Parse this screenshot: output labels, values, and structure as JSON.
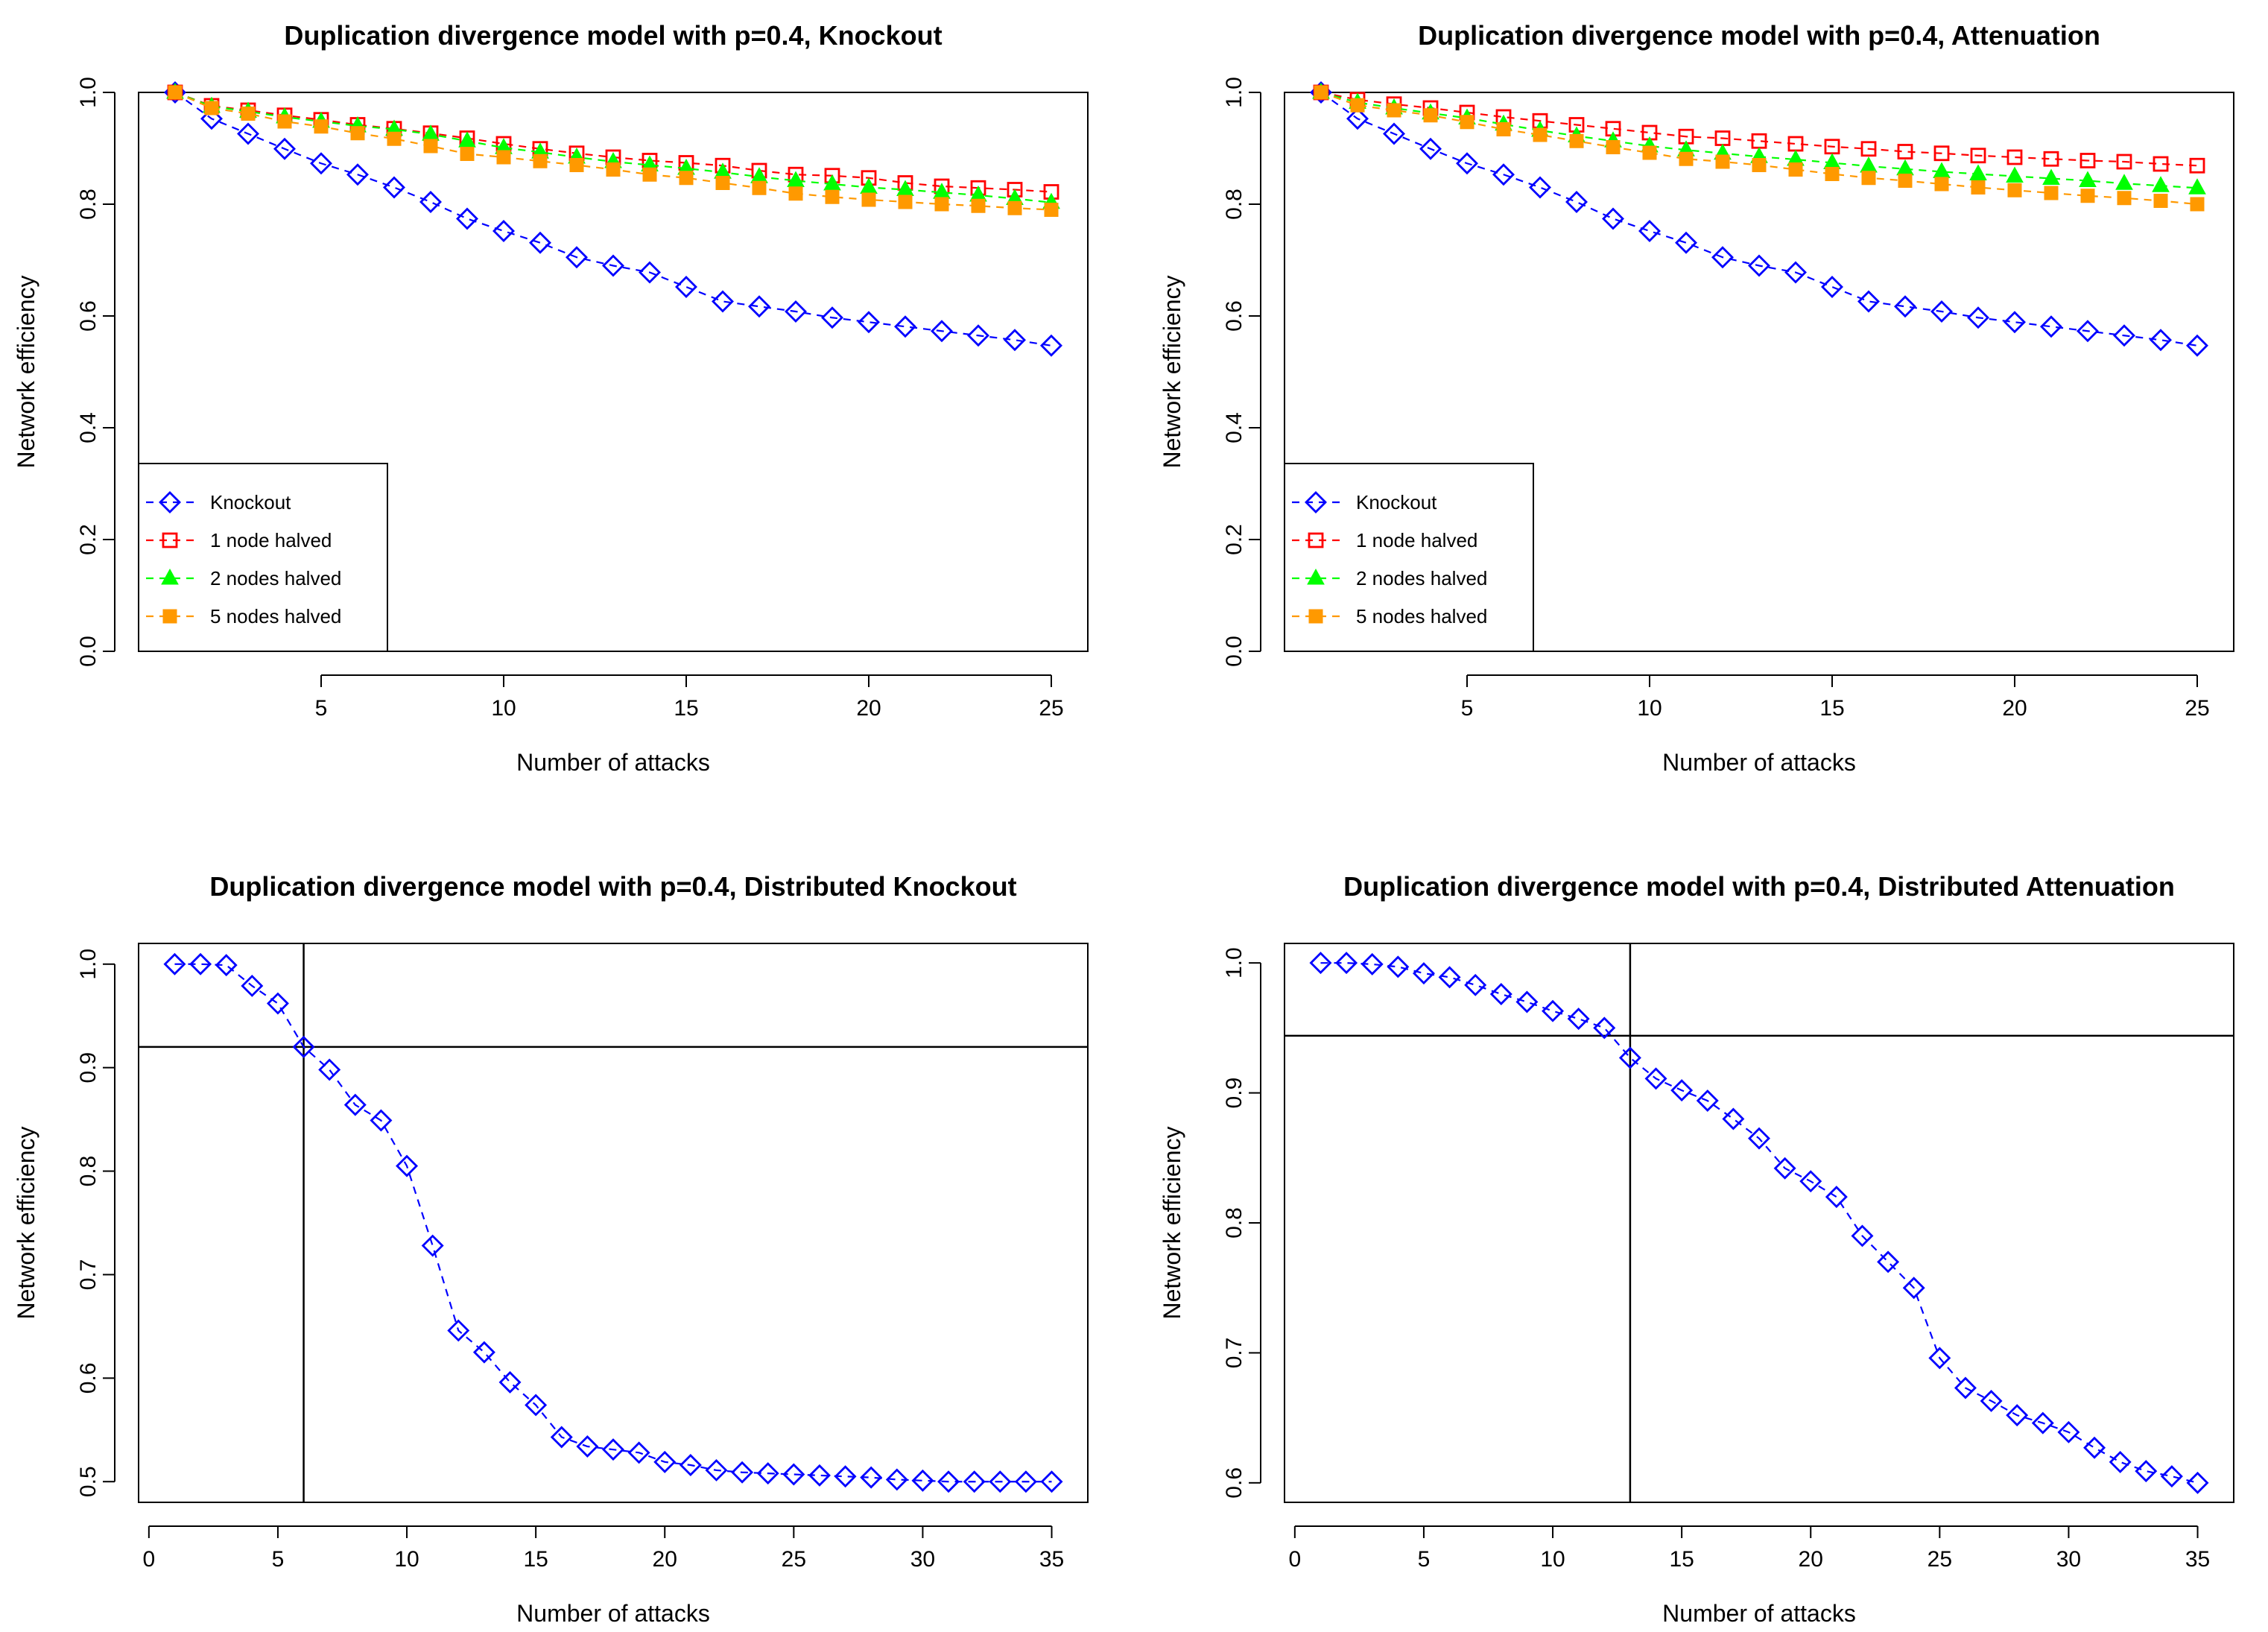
{
  "chart_data": [
    {
      "type": "line",
      "title": "Duplication divergence model with p=0.4, Knockout",
      "xlabel": "Number of attacks",
      "ylabel": "Network efficiency",
      "xlim": [
        0,
        26
      ],
      "ylim": [
        0,
        1
      ],
      "xticks": [
        5,
        10,
        15,
        20,
        25
      ],
      "yticks": [
        0.0,
        0.2,
        0.4,
        0.6,
        0.8,
        1.0
      ],
      "ytick_labels": [
        "0.0",
        "0.2",
        "0.4",
        "0.6",
        "0.8",
        "1.0"
      ],
      "x": [
        1,
        2,
        3,
        4,
        5,
        6,
        7,
        8,
        9,
        10,
        11,
        12,
        13,
        14,
        15,
        16,
        17,
        18,
        19,
        20,
        21,
        22,
        23,
        24,
        25
      ],
      "legend": "bottom-left",
      "series": [
        {
          "name": "Knockout",
          "color": "#0000ff",
          "marker": "diamond-open",
          "values": [
            1.0,
            0.953,
            0.926,
            0.899,
            0.873,
            0.853,
            0.83,
            0.804,
            0.774,
            0.752,
            0.731,
            0.705,
            0.69,
            0.678,
            0.652,
            0.626,
            0.617,
            0.608,
            0.597,
            0.589,
            0.581,
            0.573,
            0.565,
            0.557,
            0.547
          ]
        },
        {
          "name": "1 node halved",
          "color": "#ff0000",
          "marker": "square-open",
          "values": [
            1.0,
            0.976,
            0.968,
            0.959,
            0.951,
            0.942,
            0.935,
            0.927,
            0.918,
            0.908,
            0.899,
            0.891,
            0.884,
            0.878,
            0.874,
            0.869,
            0.86,
            0.853,
            0.851,
            0.847,
            0.838,
            0.832,
            0.829,
            0.826,
            0.822
          ]
        },
        {
          "name": "2 nodes halved",
          "color": "#00ff00",
          "marker": "triangle",
          "values": [
            1.0,
            0.975,
            0.966,
            0.956,
            0.948,
            0.94,
            0.934,
            0.925,
            0.913,
            0.901,
            0.893,
            0.884,
            0.876,
            0.87,
            0.864,
            0.857,
            0.849,
            0.842,
            0.836,
            0.83,
            0.826,
            0.821,
            0.816,
            0.81,
            0.803
          ]
        },
        {
          "name": "5 nodes halved",
          "color": "#ff9900",
          "marker": "square",
          "values": [
            1.0,
            0.972,
            0.962,
            0.948,
            0.939,
            0.927,
            0.917,
            0.904,
            0.89,
            0.884,
            0.877,
            0.87,
            0.862,
            0.853,
            0.847,
            0.838,
            0.829,
            0.819,
            0.813,
            0.808,
            0.804,
            0.8,
            0.797,
            0.793,
            0.79
          ]
        }
      ]
    },
    {
      "type": "line",
      "title": "Duplication divergence model with p=0.4, Attenuation",
      "xlabel": "Number of attacks",
      "ylabel": "Network efficiency",
      "xlim": [
        0,
        26
      ],
      "ylim": [
        0,
        1
      ],
      "xticks": [
        5,
        10,
        15,
        20,
        25
      ],
      "yticks": [
        0.0,
        0.2,
        0.4,
        0.6,
        0.8,
        1.0
      ],
      "ytick_labels": [
        "0.0",
        "0.2",
        "0.4",
        "0.6",
        "0.8",
        "1.0"
      ],
      "x": [
        1,
        2,
        3,
        4,
        5,
        6,
        7,
        8,
        9,
        10,
        11,
        12,
        13,
        14,
        15,
        16,
        17,
        18,
        19,
        20,
        21,
        22,
        23,
        24,
        25
      ],
      "legend": "bottom-left",
      "series": [
        {
          "name": "Knockout",
          "color": "#0000ff",
          "marker": "diamond-open",
          "values": [
            1.0,
            0.953,
            0.926,
            0.899,
            0.873,
            0.853,
            0.83,
            0.804,
            0.774,
            0.752,
            0.731,
            0.705,
            0.69,
            0.678,
            0.652,
            0.626,
            0.617,
            0.608,
            0.597,
            0.589,
            0.581,
            0.573,
            0.565,
            0.557,
            0.547
          ]
        },
        {
          "name": "1 node halved",
          "color": "#ff0000",
          "marker": "square-open",
          "values": [
            1.0,
            0.987,
            0.979,
            0.972,
            0.964,
            0.956,
            0.949,
            0.942,
            0.935,
            0.928,
            0.921,
            0.918,
            0.913,
            0.908,
            0.903,
            0.899,
            0.894,
            0.891,
            0.887,
            0.884,
            0.881,
            0.878,
            0.876,
            0.872,
            0.869
          ]
        },
        {
          "name": "2 nodes halved",
          "color": "#00ff00",
          "marker": "triangle",
          "values": [
            1.0,
            0.982,
            0.972,
            0.963,
            0.954,
            0.943,
            0.932,
            0.922,
            0.913,
            0.904,
            0.897,
            0.891,
            0.885,
            0.88,
            0.874,
            0.868,
            0.863,
            0.858,
            0.854,
            0.85,
            0.846,
            0.842,
            0.837,
            0.833,
            0.829
          ]
        },
        {
          "name": "5 nodes halved",
          "color": "#ff9900",
          "marker": "square",
          "values": [
            1.0,
            0.977,
            0.968,
            0.959,
            0.947,
            0.934,
            0.924,
            0.913,
            0.902,
            0.892,
            0.881,
            0.876,
            0.87,
            0.862,
            0.854,
            0.847,
            0.842,
            0.836,
            0.83,
            0.825,
            0.82,
            0.815,
            0.811,
            0.806,
            0.8
          ]
        }
      ]
    },
    {
      "type": "line",
      "title": "Duplication divergence model with p=0.4, Distributed Knockout",
      "xlabel": "Number of attacks",
      "ylabel": "Network efficiency",
      "xlim": [
        -0.4,
        36.4
      ],
      "ylim": [
        0.48,
        1.02
      ],
      "xticks": [
        0,
        5,
        10,
        15,
        20,
        25,
        30,
        35
      ],
      "yticks": [
        0.5,
        0.6,
        0.7,
        0.8,
        0.9,
        1.0
      ],
      "ytick_labels": [
        "0.5",
        "0.6",
        "0.7",
        "0.8",
        "0.9",
        "1.0"
      ],
      "x": [
        1,
        2,
        3,
        4,
        5,
        6,
        7,
        8,
        9,
        10,
        11,
        12,
        13,
        14,
        15,
        16,
        17,
        18,
        19,
        20,
        21,
        22,
        23,
        24,
        25,
        26,
        27,
        28,
        29,
        30,
        31,
        32,
        33,
        34,
        35
      ],
      "ref_lines": {
        "vline": 6,
        "hline": 0.92
      },
      "series": [
        {
          "color": "#0000ff",
          "marker": "diamond-open",
          "values": [
            1.0,
            1.0,
            0.999,
            0.979,
            0.962,
            0.92,
            0.898,
            0.864,
            0.849,
            0.805,
            0.728,
            0.646,
            0.625,
            0.596,
            0.574,
            0.543,
            0.534,
            0.531,
            0.528,
            0.519,
            0.516,
            0.511,
            0.509,
            0.508,
            0.507,
            0.506,
            0.505,
            0.504,
            0.502,
            0.501,
            0.5,
            0.5,
            0.5,
            0.5,
            0.5
          ]
        }
      ]
    },
    {
      "type": "line",
      "title": "Duplication divergence model with p=0.4, Distributed Attenuation",
      "xlabel": "Number of attacks",
      "ylabel": "Network efficiency",
      "xlim": [
        -0.4,
        36.4
      ],
      "ylim": [
        0.585,
        1.015
      ],
      "xticks": [
        0,
        5,
        10,
        15,
        20,
        25,
        30,
        35
      ],
      "yticks": [
        0.6,
        0.7,
        0.8,
        0.9,
        1.0
      ],
      "ytick_labels": [
        "0.6",
        "0.7",
        "0.8",
        "0.9",
        "1.0"
      ],
      "x": [
        1,
        2,
        3,
        4,
        5,
        6,
        7,
        8,
        9,
        10,
        11,
        12,
        13,
        14,
        15,
        16,
        17,
        18,
        19,
        20,
        21,
        22,
        23,
        24,
        25,
        26,
        27,
        28,
        29,
        30,
        31,
        32,
        33,
        34,
        35
      ],
      "ref_lines": {
        "vline": 13,
        "hline": 0.944
      },
      "series": [
        {
          "color": "#0000ff",
          "marker": "diamond-open",
          "values": [
            1.0,
            1.0,
            0.999,
            0.997,
            0.992,
            0.989,
            0.983,
            0.976,
            0.97,
            0.963,
            0.957,
            0.95,
            0.927,
            0.911,
            0.902,
            0.894,
            0.88,
            0.865,
            0.842,
            0.832,
            0.82,
            0.79,
            0.77,
            0.75,
            0.696,
            0.673,
            0.663,
            0.652,
            0.646,
            0.639,
            0.627,
            0.616,
            0.609,
            0.605,
            0.6
          ]
        }
      ]
    }
  ]
}
